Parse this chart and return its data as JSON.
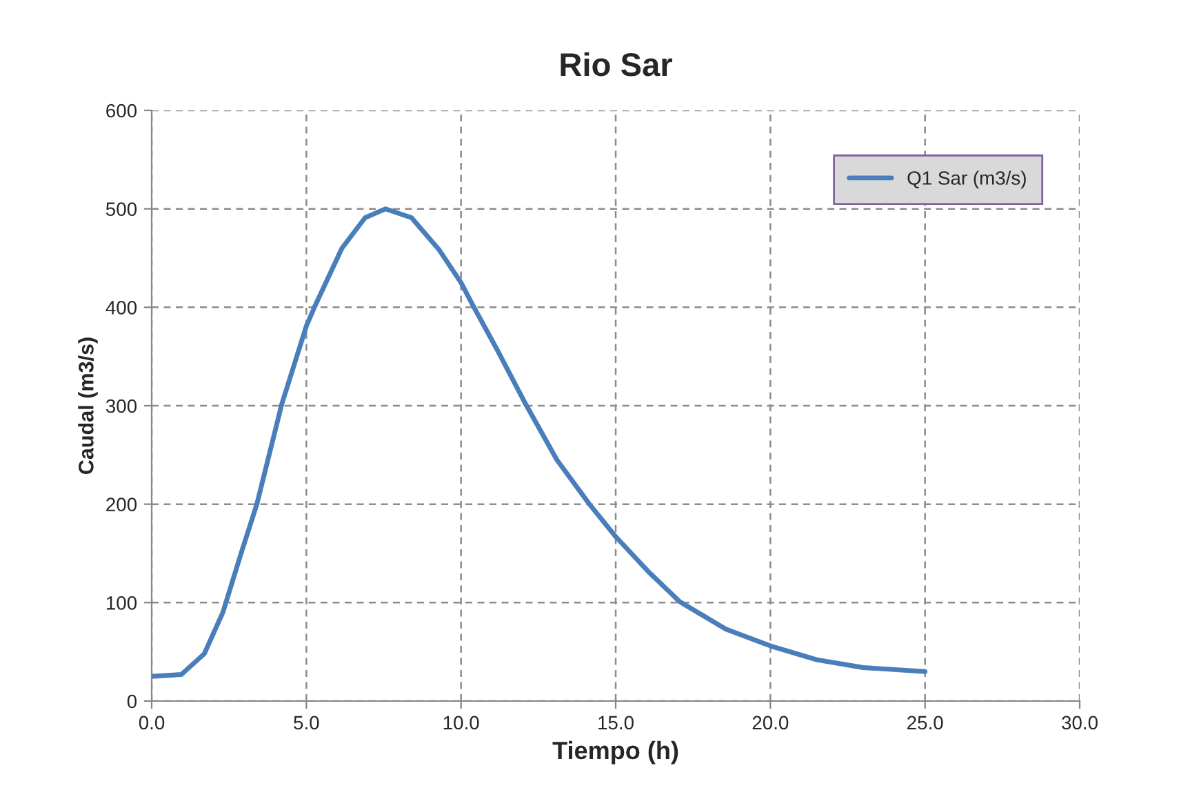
{
  "chart_data": {
    "type": "line",
    "title": "Rio Sar",
    "xlabel": "Tiempo (h)",
    "ylabel": "Caudal (m3/s)",
    "series": [
      {
        "name": "Q1 Sar (m3/s)",
        "color": "#4a7ebb",
        "x": [
          0,
          0.96,
          1.7,
          2.3,
          2.9,
          3.4,
          4.2,
          5.0,
          5.26,
          6.15,
          6.9,
          7.56,
          8.4,
          9.3,
          10.0,
          10.4,
          11.2,
          12.1,
          13.1,
          14.15,
          15.0,
          16.04,
          17.07,
          18.56,
          20.0,
          21.5,
          23.0,
          25.0
        ],
        "values": [
          25,
          27,
          48,
          90,
          151,
          200,
          301,
          381,
          400,
          460,
          491,
          500,
          491,
          458,
          425,
          401,
          355,
          301,
          245,
          200,
          167,
          132,
          101,
          73,
          56,
          42,
          34,
          30
        ]
      }
    ],
    "xlim": [
      0,
      30
    ],
    "ylim": [
      0,
      600
    ],
    "xticks": [
      {
        "value": 0,
        "label": "0.0"
      },
      {
        "value": 5,
        "label": "5.0"
      },
      {
        "value": 10,
        "label": "10.0"
      },
      {
        "value": 15,
        "label": "15.0"
      },
      {
        "value": 20,
        "label": "20.0"
      },
      {
        "value": 25,
        "label": "25.0"
      },
      {
        "value": 30,
        "label": "30.0"
      }
    ],
    "yticks": [
      0,
      100,
      200,
      300,
      400,
      500,
      600
    ],
    "grid": true,
    "legend": "top right",
    "marker": "none",
    "line_style": "solid"
  }
}
